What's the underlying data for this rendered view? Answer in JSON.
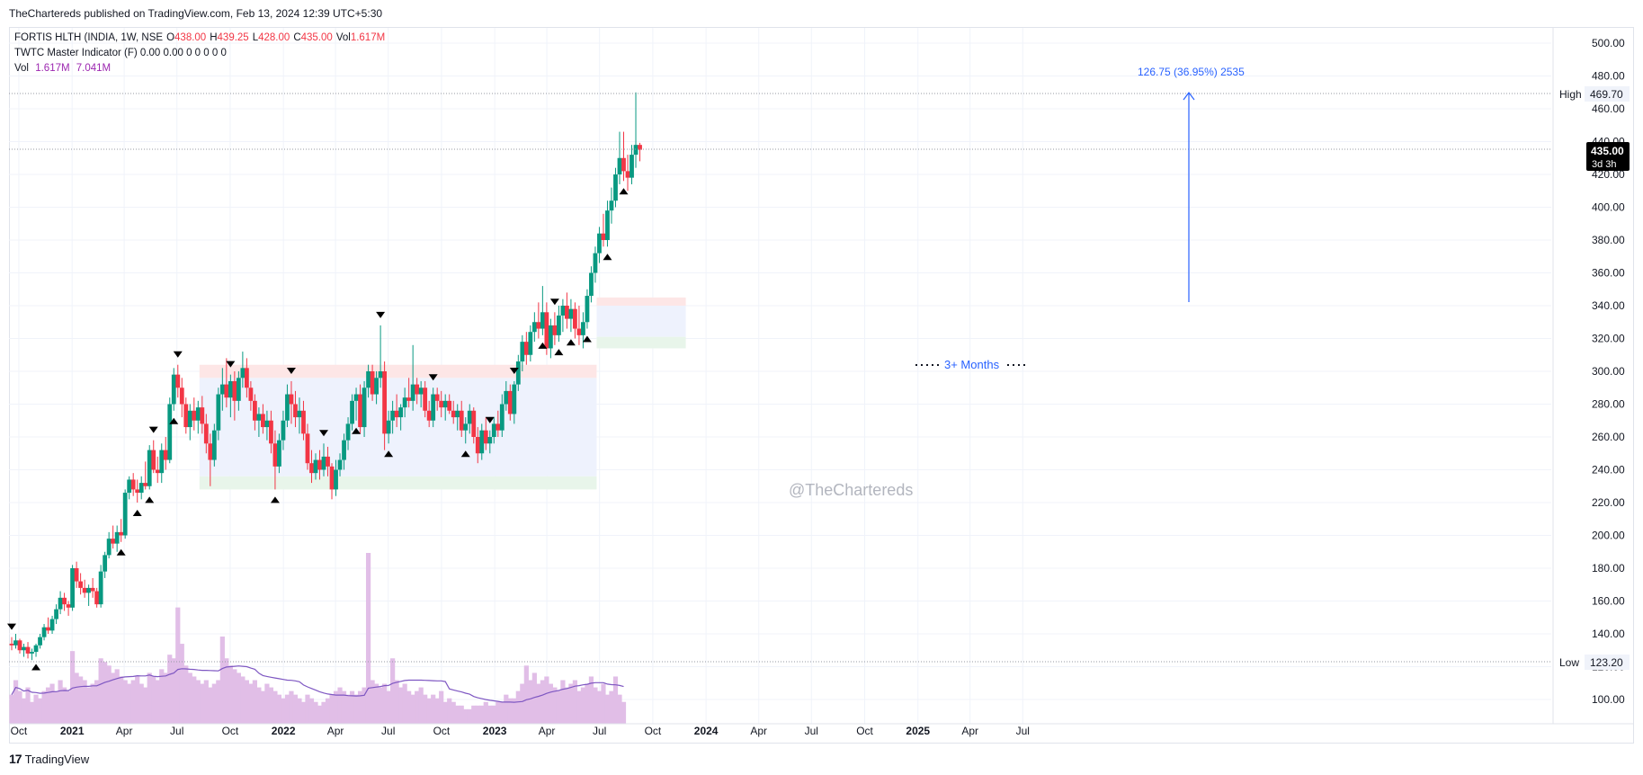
{
  "header": {
    "published": "TheChartereds published on TradingView.com, Feb 13, 2024 12:39 UTC+5:30"
  },
  "legend": {
    "symbol": "FORTIS HLTH (INDIA, 1W, NSE",
    "open_label": "O",
    "open": "438.00",
    "high_label": "H",
    "high": "439.25",
    "low_label": "L",
    "low": "428.00",
    "close_label": "C",
    "close": "435.00",
    "vol_label": "Vol",
    "vol": "1.617M",
    "indicator": "TWTC Master Indicator (F)  0.00  0.00  0  0  0  0  0",
    "vol_row_label": "Vol",
    "vol_row_value": "1.617M",
    "vol_ma_value": "7.041M"
  },
  "annotations": {
    "measure_label": "126.75 (36.95%) 2535",
    "months_label": "3+ Months",
    "watermark": "@TheChartereds",
    "high_tag_label": "High",
    "high_tag_value": "469.70",
    "low_tag_label": "Low",
    "low_tag_value": "123.20",
    "last_price": "435.00",
    "countdown": "3d 3h"
  },
  "footer": {
    "brand": "TradingView"
  },
  "colors": {
    "up": "#089981",
    "down": "#f23645",
    "volume": "#e1bee7",
    "volume_ma": "#7e57c2",
    "zone_fill": "#eef2fd",
    "resistance": "#fde6e6",
    "support": "#e8f5ea",
    "measure": "#2962ff"
  },
  "chart_data": {
    "type": "candlestick",
    "timeframe": "1W",
    "y_axis": {
      "ticks": [
        100,
        120,
        140,
        160,
        180,
        200,
        220,
        240,
        260,
        280,
        300,
        320,
        340,
        360,
        380,
        400,
        420,
        440,
        460,
        480,
        500
      ],
      "range": [
        88,
        512
      ]
    },
    "x_axis": {
      "range": [
        "2020-09-14",
        "2025-07-28"
      ],
      "ticks": [
        {
          "date": "2020-10-01",
          "label": "Oct",
          "bold": false
        },
        {
          "date": "2021-01-01",
          "label": "2021",
          "bold": true
        },
        {
          "date": "2021-04-01",
          "label": "Apr",
          "bold": false
        },
        {
          "date": "2021-07-01",
          "label": "Jul",
          "bold": false
        },
        {
          "date": "2021-10-01",
          "label": "Oct",
          "bold": false
        },
        {
          "date": "2022-01-01",
          "label": "2022",
          "bold": true
        },
        {
          "date": "2022-04-01",
          "label": "Apr",
          "bold": false
        },
        {
          "date": "2022-07-01",
          "label": "Jul",
          "bold": false
        },
        {
          "date": "2022-10-01",
          "label": "Oct",
          "bold": false
        },
        {
          "date": "2023-01-01",
          "label": "2023",
          "bold": true
        },
        {
          "date": "2023-04-01",
          "label": "Apr",
          "bold": false
        },
        {
          "date": "2023-07-01",
          "label": "Jul",
          "bold": false
        },
        {
          "date": "2023-10-01",
          "label": "Oct",
          "bold": false
        },
        {
          "date": "2024-01-01",
          "label": "2024",
          "bold": true
        },
        {
          "date": "2024-04-01",
          "label": "Apr",
          "bold": false
        },
        {
          "date": "2024-07-01",
          "label": "Jul",
          "bold": false
        },
        {
          "date": "2024-10-01",
          "label": "Oct",
          "bold": false
        },
        {
          "date": "2025-01-01",
          "label": "2025",
          "bold": true
        },
        {
          "date": "2025-04-01",
          "label": "Apr",
          "bold": false
        },
        {
          "date": "2025-07-01",
          "label": "Jul",
          "bold": false
        }
      ]
    },
    "ohlc_weekly": {
      "first_bar": "2020-09-14",
      "interval_days": 7,
      "comment_none": "",
      "bars": [
        [
          134,
          138,
          130,
          133
        ],
        [
          133,
          140,
          131,
          136
        ],
        [
          136,
          137,
          128,
          130
        ],
        [
          130,
          134,
          126,
          132
        ],
        [
          132,
          135,
          125,
          128
        ],
        [
          128,
          131,
          124,
          129
        ],
        [
          129,
          134,
          126,
          133
        ],
        [
          133,
          140,
          131,
          138
        ],
        [
          138,
          146,
          136,
          144
        ],
        [
          144,
          150,
          140,
          142
        ],
        [
          142,
          151,
          140,
          149
        ],
        [
          149,
          158,
          146,
          155
        ],
        [
          155,
          166,
          152,
          162
        ],
        [
          162,
          165,
          154,
          158
        ],
        [
          158,
          160,
          151,
          156
        ],
        [
          156,
          182,
          154,
          180
        ],
        [
          180,
          184,
          168,
          172
        ],
        [
          172,
          177,
          164,
          168
        ],
        [
          168,
          173,
          162,
          165
        ],
        [
          165,
          170,
          157,
          168
        ],
        [
          168,
          174,
          162,
          166
        ],
        [
          166,
          168,
          156,
          158
        ],
        [
          158,
          182,
          156,
          178
        ],
        [
          178,
          190,
          174,
          188
        ],
        [
          188,
          202,
          186,
          198
        ],
        [
          198,
          206,
          192,
          195
        ],
        [
          195,
          206,
          190,
          202
        ],
        [
          202,
          210,
          196,
          200
        ],
        [
          200,
          228,
          198,
          226
        ],
        [
          226,
          236,
          222,
          234
        ],
        [
          234,
          238,
          224,
          228
        ],
        [
          228,
          234,
          220,
          226
        ],
        [
          226,
          236,
          222,
          232
        ],
        [
          232,
          245,
          228,
          230
        ],
        [
          230,
          255,
          228,
          252
        ],
        [
          252,
          258,
          238,
          240
        ],
        [
          240,
          248,
          232,
          238
        ],
        [
          238,
          256,
          232,
          252
        ],
        [
          252,
          260,
          240,
          246
        ],
        [
          246,
          284,
          244,
          280
        ],
        [
          280,
          302,
          276,
          298
        ],
        [
          298,
          304,
          284,
          290
        ],
        [
          290,
          296,
          272,
          280
        ],
        [
          280,
          284,
          262,
          266
        ],
        [
          266,
          280,
          258,
          276
        ],
        [
          276,
          284,
          264,
          270
        ],
        [
          270,
          282,
          262,
          278
        ],
        [
          278,
          285,
          262,
          268
        ],
        [
          268,
          274,
          250,
          256
        ],
        [
          256,
          262,
          230,
          246
        ],
        [
          246,
          268,
          242,
          264
        ],
        [
          264,
          290,
          258,
          286
        ],
        [
          286,
          302,
          276,
          292
        ],
        [
          292,
          308,
          278,
          284
        ],
        [
          284,
          298,
          272,
          294
        ],
        [
          294,
          300,
          270,
          282
        ],
        [
          282,
          300,
          276,
          296
        ],
        [
          296,
          312,
          290,
          302
        ],
        [
          302,
          308,
          284,
          290
        ],
        [
          290,
          294,
          276,
          282
        ],
        [
          282,
          286,
          264,
          270
        ],
        [
          270,
          278,
          260,
          274
        ],
        [
          274,
          280,
          262,
          266
        ],
        [
          266,
          276,
          258,
          270
        ],
        [
          270,
          276,
          250,
          256
        ],
        [
          256,
          264,
          228,
          242
        ],
        [
          242,
          262,
          238,
          258
        ],
        [
          258,
          276,
          252,
          270
        ],
        [
          270,
          292,
          266,
          286
        ],
        [
          286,
          294,
          268,
          280
        ],
        [
          280,
          288,
          266,
          272
        ],
        [
          272,
          284,
          262,
          276
        ],
        [
          276,
          282,
          258,
          262
        ],
        [
          262,
          268,
          240,
          244
        ],
        [
          244,
          252,
          232,
          238
        ],
        [
          238,
          250,
          234,
          246
        ],
        [
          246,
          252,
          234,
          240
        ],
        [
          240,
          256,
          236,
          248
        ],
        [
          248,
          254,
          236,
          242
        ],
        [
          242,
          244,
          222,
          228
        ],
        [
          228,
          246,
          224,
          240
        ],
        [
          240,
          250,
          236,
          246
        ],
        [
          246,
          262,
          240,
          258
        ],
        [
          258,
          272,
          252,
          268
        ],
        [
          268,
          286,
          264,
          282
        ],
        [
          282,
          290,
          270,
          286
        ],
        [
          286,
          292,
          262,
          266
        ],
        [
          266,
          294,
          260,
          290
        ],
        [
          290,
          304,
          284,
          300
        ],
        [
          300,
          304,
          282,
          286
        ],
        [
          286,
          300,
          280,
          296
        ],
        [
          296,
          328,
          290,
          300
        ],
        [
          300,
          306,
          252,
          262
        ],
        [
          262,
          276,
          256,
          270
        ],
        [
          270,
          282,
          262,
          276
        ],
        [
          276,
          286,
          266,
          272
        ],
        [
          272,
          280,
          264,
          278
        ],
        [
          278,
          290,
          272,
          284
        ],
        [
          284,
          296,
          278,
          282
        ],
        [
          282,
          316,
          276,
          292
        ],
        [
          292,
          296,
          280,
          286
        ],
        [
          286,
          294,
          278,
          290
        ],
        [
          290,
          294,
          272,
          276
        ],
        [
          276,
          282,
          266,
          270
        ],
        [
          270,
          290,
          266,
          286
        ],
        [
          286,
          290,
          276,
          282
        ],
        [
          282,
          288,
          272,
          278
        ],
        [
          278,
          286,
          270,
          282
        ],
        [
          282,
          286,
          274,
          276
        ],
        [
          276,
          282,
          268,
          272
        ],
        [
          272,
          280,
          264,
          276
        ],
        [
          276,
          282,
          260,
          264
        ],
        [
          264,
          272,
          256,
          268
        ],
        [
          268,
          280,
          262,
          276
        ],
        [
          276,
          278,
          256,
          260
        ],
        [
          260,
          266,
          244,
          250
        ],
        [
          250,
          268,
          246,
          264
        ],
        [
          264,
          272,
          252,
          256
        ],
        [
          256,
          264,
          250,
          260
        ],
        [
          260,
          272,
          256,
          268
        ],
        [
          268,
          276,
          260,
          264
        ],
        [
          264,
          286,
          260,
          280
        ],
        [
          280,
          294,
          276,
          288
        ],
        [
          288,
          292,
          270,
          274
        ],
        [
          274,
          294,
          268,
          292
        ],
        [
          292,
          310,
          288,
          306
        ],
        [
          306,
          322,
          300,
          318
        ],
        [
          318,
          324,
          304,
          310
        ],
        [
          310,
          328,
          306,
          324
        ],
        [
          324,
          336,
          318,
          330
        ],
        [
          330,
          342,
          320,
          326
        ],
        [
          326,
          352,
          322,
          336
        ],
        [
          336,
          342,
          310,
          314
        ],
        [
          314,
          332,
          308,
          328
        ],
        [
          328,
          336,
          316,
          322
        ],
        [
          322,
          340,
          318,
          334
        ],
        [
          334,
          344,
          324,
          340
        ],
        [
          340,
          348,
          326,
          332
        ],
        [
          332,
          344,
          324,
          338
        ],
        [
          338,
          342,
          320,
          326
        ],
        [
          326,
          340,
          316,
          322
        ],
        [
          322,
          336,
          314,
          330
        ],
        [
          330,
          350,
          326,
          346
        ],
        [
          346,
          364,
          342,
          360
        ],
        [
          360,
          376,
          354,
          372
        ],
        [
          372,
          388,
          366,
          384
        ],
        [
          384,
          396,
          376,
          380
        ],
        [
          380,
          404,
          376,
          398
        ],
        [
          398,
          412,
          390,
          404
        ],
        [
          404,
          424,
          400,
          420
        ],
        [
          420,
          446,
          414,
          430
        ],
        [
          430,
          446,
          416,
          422
        ],
        [
          422,
          432,
          410,
          418
        ],
        [
          418,
          438,
          414,
          432
        ],
        [
          432,
          470,
          424,
          438
        ],
        [
          438,
          439.25,
          428,
          435
        ]
      ]
    },
    "volume_weekly": [
      8,
      12,
      9,
      7,
      10,
      6,
      8,
      7,
      9,
      10,
      11,
      9,
      12,
      10,
      9,
      20,
      14,
      13,
      12,
      10,
      11,
      12,
      18,
      17,
      16,
      14,
      15,
      13,
      12,
      11,
      12,
      13,
      11,
      10,
      14,
      13,
      12,
      15,
      14,
      19,
      18,
      32,
      22,
      16,
      14,
      13,
      12,
      11,
      12,
      10,
      11,
      12,
      24,
      18,
      16,
      15,
      14,
      13,
      12,
      11,
      12,
      10,
      9,
      11,
      10,
      9,
      8,
      7,
      8,
      9,
      8,
      7,
      6,
      8,
      7,
      6,
      5,
      6,
      7,
      8,
      9,
      10,
      9,
      8,
      9,
      8,
      9,
      10,
      47,
      12,
      11,
      10,
      11,
      9,
      18,
      12,
      10,
      11,
      9,
      8,
      9,
      10,
      8,
      7,
      8,
      7,
      9,
      6,
      7,
      6,
      5,
      5,
      4,
      4,
      5,
      5,
      5,
      6,
      5,
      5,
      6,
      6,
      8,
      7,
      7,
      9,
      11,
      16,
      12,
      14,
      11,
      12,
      13,
      11,
      10,
      9,
      12,
      10,
      11,
      12,
      9,
      10,
      11,
      13,
      10,
      9,
      11,
      8,
      9,
      13,
      8,
      6
    ]
  }
}
